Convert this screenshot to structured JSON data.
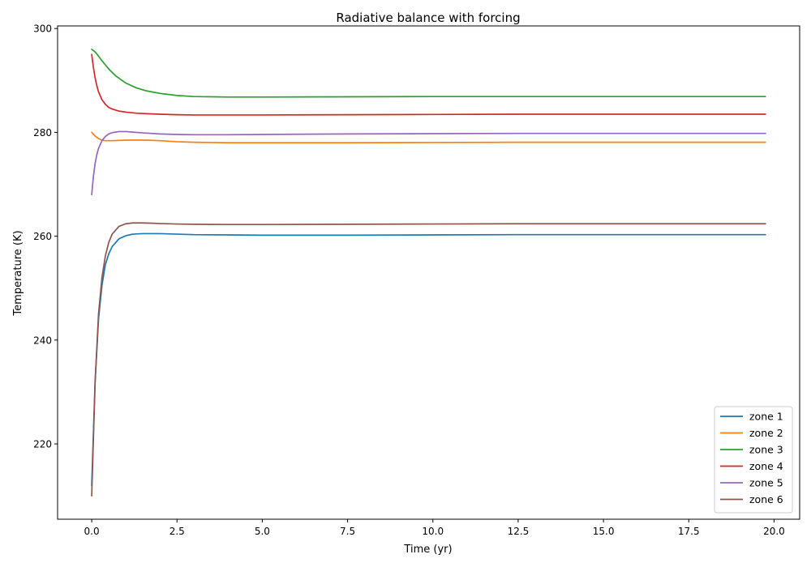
{
  "chart_data": {
    "type": "line",
    "title": "Radiative balance with forcing",
    "xlabel": "Time (yr)",
    "ylabel": "Temperature (K)",
    "xlim": [
      -1.0,
      20.75
    ],
    "ylim": [
      205.5,
      300.5
    ],
    "xticks": [
      0.0,
      2.5,
      5.0,
      7.5,
      10.0,
      12.5,
      15.0,
      17.5,
      20.0
    ],
    "xtick_labels": [
      "0.0",
      "2.5",
      "5.0",
      "7.5",
      "10.0",
      "12.5",
      "15.0",
      "17.5",
      "20.0"
    ],
    "yticks": [
      220,
      240,
      260,
      280,
      300
    ],
    "ytick_labels": [
      "220",
      "240",
      "260",
      "280",
      "300"
    ],
    "grid": false,
    "legend_position": "bottom-right",
    "series": [
      {
        "name": "zone 1",
        "color": "#1f77b4",
        "x": [
          0.0,
          0.1,
          0.2,
          0.3,
          0.4,
          0.5,
          0.6,
          0.8,
          1.0,
          1.2,
          1.5,
          2.0,
          2.5,
          3.0,
          4.0,
          5.0,
          7.5,
          10.0,
          12.5,
          15.0,
          17.5,
          19.75
        ],
        "y": [
          212,
          232,
          244,
          250.5,
          254.5,
          256.6,
          258.0,
          259.5,
          260.1,
          260.4,
          260.5,
          260.5,
          260.4,
          260.3,
          260.25,
          260.2,
          260.2,
          260.25,
          260.3,
          260.3,
          260.3,
          260.3
        ]
      },
      {
        "name": "zone 2",
        "color": "#ff7f0e",
        "x": [
          0.0,
          0.1,
          0.2,
          0.3,
          0.4,
          0.6,
          0.8,
          1.0,
          1.3,
          1.6,
          2.0,
          2.5,
          3.0,
          4.0,
          5.0,
          7.5,
          10.0,
          12.5,
          15.0,
          17.5,
          19.75
        ],
        "y": [
          280.0,
          279.3,
          278.8,
          278.5,
          278.4,
          278.4,
          278.45,
          278.5,
          278.5,
          278.5,
          278.4,
          278.2,
          278.1,
          278.0,
          278.0,
          278.0,
          278.05,
          278.1,
          278.1,
          278.1,
          278.1
        ]
      },
      {
        "name": "zone 3",
        "color": "#2ca02c",
        "x": [
          0.0,
          0.1,
          0.2,
          0.3,
          0.5,
          0.7,
          1.0,
          1.3,
          1.6,
          2.0,
          2.5,
          3.0,
          4.0,
          5.0,
          7.5,
          10.0,
          12.5,
          15.0,
          17.5,
          19.75
        ],
        "y": [
          296.0,
          295.5,
          294.7,
          293.8,
          292.2,
          290.9,
          289.5,
          288.6,
          288.0,
          287.5,
          287.1,
          286.9,
          286.8,
          286.8,
          286.85,
          286.9,
          286.9,
          286.9,
          286.9,
          286.9
        ]
      },
      {
        "name": "zone 4",
        "color": "#d62728",
        "x": [
          0.0,
          0.05,
          0.1,
          0.15,
          0.2,
          0.3,
          0.4,
          0.5,
          0.6,
          0.8,
          1.0,
          1.3,
          1.6,
          2.0,
          2.5,
          3.0,
          4.0,
          5.0,
          7.5,
          10.0,
          12.5,
          15.0,
          17.5,
          19.75
        ],
        "y": [
          295.0,
          292.5,
          290.5,
          289.0,
          287.8,
          286.3,
          285.4,
          284.8,
          284.5,
          284.1,
          283.9,
          283.7,
          283.6,
          283.5,
          283.4,
          283.35,
          283.35,
          283.35,
          283.4,
          283.45,
          283.5,
          283.5,
          283.5,
          283.5
        ]
      },
      {
        "name": "zone 5",
        "color": "#9467bd",
        "x": [
          0.0,
          0.05,
          0.1,
          0.15,
          0.2,
          0.3,
          0.4,
          0.5,
          0.6,
          0.8,
          1.0,
          1.2,
          1.5,
          2.0,
          2.5,
          3.0,
          4.0,
          5.0,
          7.5,
          10.0,
          12.5,
          15.0,
          17.5,
          19.75
        ],
        "y": [
          268.0,
          271.5,
          274.0,
          275.7,
          276.9,
          278.4,
          279.2,
          279.7,
          279.95,
          280.15,
          280.15,
          280.05,
          279.9,
          279.7,
          279.6,
          279.55,
          279.55,
          279.6,
          279.7,
          279.75,
          279.8,
          279.8,
          279.8,
          279.8
        ]
      },
      {
        "name": "zone 6",
        "color": "#8c564b",
        "x": [
          0.0,
          0.1,
          0.2,
          0.3,
          0.4,
          0.5,
          0.6,
          0.8,
          1.0,
          1.2,
          1.5,
          1.8,
          2.0,
          2.5,
          3.0,
          4.0,
          5.0,
          7.5,
          10.0,
          12.5,
          15.0,
          17.5,
          19.75
        ],
        "y": [
          210,
          232,
          245,
          252,
          256.2,
          258.8,
          260.4,
          261.9,
          262.4,
          262.55,
          262.55,
          262.5,
          262.45,
          262.35,
          262.3,
          262.25,
          262.25,
          262.3,
          262.35,
          262.4,
          262.4,
          262.4,
          262.4
        ]
      }
    ]
  }
}
